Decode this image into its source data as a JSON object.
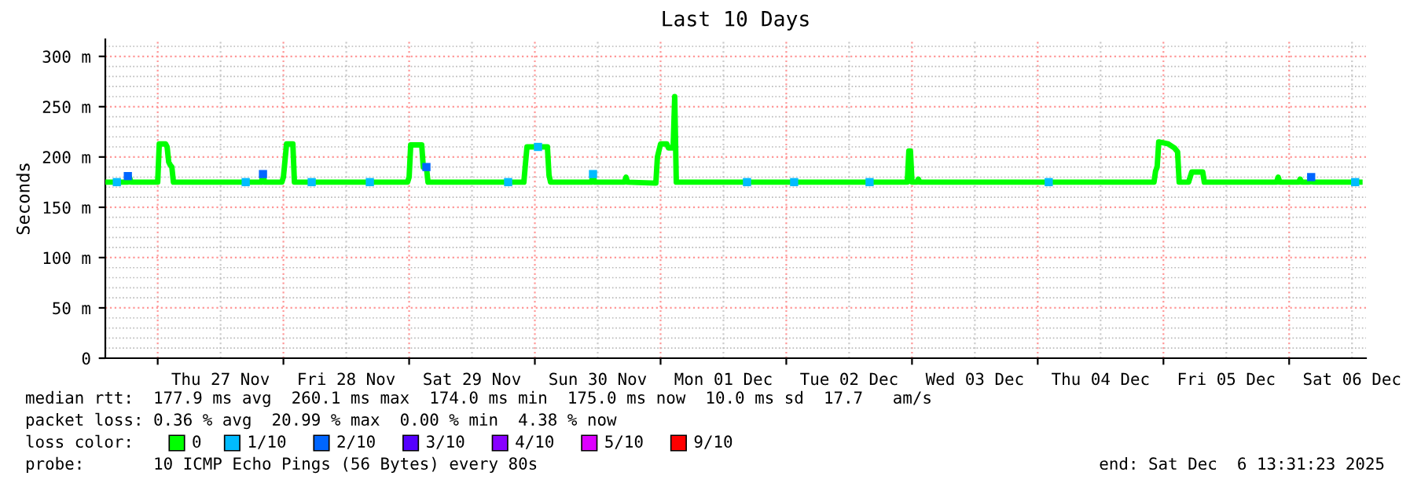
{
  "chart_data": {
    "type": "line",
    "title": "Last 10 Days",
    "ylabel": "Seconds",
    "legend_title": "loss color:",
    "xlim": [
      "2025-11-26T14:00",
      "2025-12-06T14:40"
    ],
    "ylim": [
      0,
      317
    ],
    "xticks": [
      {
        "value": "2025-11-27T00:00",
        "label": null
      },
      {
        "value": "2025-11-27T12:00",
        "label": "Thu 27 Nov"
      },
      {
        "value": "2025-11-28T00:00",
        "label": null
      },
      {
        "value": "2025-11-28T12:00",
        "label": "Fri 28 Nov"
      },
      {
        "value": "2025-11-29T00:00",
        "label": null
      },
      {
        "value": "2025-11-29T12:00",
        "label": "Sat 29 Nov"
      },
      {
        "value": "2025-11-30T00:00",
        "label": null
      },
      {
        "value": "2025-11-30T12:00",
        "label": "Sun 30 Nov"
      },
      {
        "value": "2025-12-01T00:00",
        "label": null
      },
      {
        "value": "2025-12-01T12:00",
        "label": "Mon 01 Dec"
      },
      {
        "value": "2025-12-02T00:00",
        "label": null
      },
      {
        "value": "2025-12-02T12:00",
        "label": "Tue 02 Dec"
      },
      {
        "value": "2025-12-03T00:00",
        "label": null
      },
      {
        "value": "2025-12-03T12:00",
        "label": "Wed 03 Dec"
      },
      {
        "value": "2025-12-04T00:00",
        "label": null
      },
      {
        "value": "2025-12-04T12:00",
        "label": "Thu 04 Dec"
      },
      {
        "value": "2025-12-05T00:00",
        "label": null
      },
      {
        "value": "2025-12-05T12:00",
        "label": "Fri 05 Dec"
      },
      {
        "value": "2025-12-06T00:00",
        "label": null
      },
      {
        "value": "2025-12-06T12:00",
        "label": "Sat 06 Dec"
      }
    ],
    "yticks": [
      {
        "value": 0,
        "label": "0"
      },
      {
        "value": 50,
        "label": "50 m"
      },
      {
        "value": 100,
        "label": "100 m"
      },
      {
        "value": 150,
        "label": "150 m"
      },
      {
        "value": 200,
        "label": "200 m"
      },
      {
        "value": 250,
        "label": "250 m"
      },
      {
        "value": 300,
        "label": "300 m"
      }
    ],
    "grid": true,
    "legend": "bottom",
    "series": [
      {
        "name": "0",
        "color": "#00ff00",
        "x": [
          "2025-11-26T14:06",
          "2025-11-26T18:18",
          "2025-11-26T18:36",
          "2025-11-26T18:54",
          "2025-11-27T00:00",
          "2025-11-27T00:18",
          "2025-11-27T01:30",
          "2025-11-27T01:48",
          "2025-11-27T02:06",
          "2025-11-27T02:24",
          "2025-11-27T02:42",
          "2025-11-27T03:00",
          "2025-11-27T19:48",
          "2025-11-27T20:06",
          "2025-11-27T20:24",
          "2025-11-27T23:42",
          "2025-11-28T00:00",
          "2025-11-28T00:36",
          "2025-11-28T01:48",
          "2025-11-28T02:06",
          "2025-11-28T23:42",
          "2025-11-29T00:00",
          "2025-11-29T00:18",
          "2025-11-29T02:24",
          "2025-11-29T02:42",
          "2025-11-29T03:18",
          "2025-11-29T03:36",
          "2025-11-29T21:54",
          "2025-11-29T22:12",
          "2025-11-29T22:30",
          "2025-11-30T02:24",
          "2025-11-30T02:42",
          "2025-11-30T03:00",
          "2025-11-30T10:48",
          "2025-11-30T11:06",
          "2025-11-30T11:24",
          "2025-11-30T17:06",
          "2025-11-30T17:24",
          "2025-11-30T17:42",
          "2025-11-30T23:06",
          "2025-11-30T23:24",
          "2025-12-01T00:00",
          "2025-12-01T01:12",
          "2025-12-01T01:30",
          "2025-12-01T02:24",
          "2025-12-01T02:42",
          "2025-12-01T03:00",
          "2025-12-02T23:06",
          "2025-12-02T23:24",
          "2025-12-02T23:42",
          "2025-12-03T00:00",
          "2025-12-03T00:54",
          "2025-12-03T01:12",
          "2025-12-03T01:30",
          "2025-12-04T22:12",
          "2025-12-04T22:30",
          "2025-12-04T22:48",
          "2025-12-04T23:06",
          "2025-12-05T00:54",
          "2025-12-05T02:06",
          "2025-12-05T02:42",
          "2025-12-05T03:00",
          "2025-12-05T04:48",
          "2025-12-05T05:06",
          "2025-12-05T05:24",
          "2025-12-05T07:30",
          "2025-12-05T07:48",
          "2025-12-05T21:36",
          "2025-12-05T21:54",
          "2025-12-05T22:12",
          "2025-12-06T01:48",
          "2025-12-06T02:06",
          "2025-12-06T02:24",
          "2025-12-06T03:54",
          "2025-12-06T04:12",
          "2025-12-06T04:30",
          "2025-12-06T13:30"
        ],
        "values": [
          175,
          175,
          180,
          175,
          175,
          213,
          213,
          210,
          195,
          192,
          190,
          175,
          175,
          183,
          175,
          175,
          180,
          213,
          213,
          175,
          175,
          180,
          212,
          212,
          190,
          190,
          175,
          175,
          193,
          210,
          210,
          182,
          175,
          175,
          183,
          175,
          175,
          180,
          175,
          174,
          200,
          213,
          213,
          209,
          209,
          260,
          175,
          175,
          206,
          206,
          175,
          175,
          178,
          175,
          175,
          186,
          190,
          215,
          213,
          209,
          205,
          175,
          175,
          180,
          185,
          185,
          175,
          175,
          180,
          175,
          175,
          178,
          175,
          175,
          180,
          175,
          175
        ]
      },
      {
        "name": "1/10",
        "type": "scatter",
        "color": "#00bbff",
        "x": [
          "2025-11-26T16:12",
          "2025-11-27T16:48",
          "2025-11-28T05:24",
          "2025-11-28T16:30",
          "2025-11-29T18:54",
          "2025-11-30T00:36",
          "2025-11-30T11:06",
          "2025-12-01T16:30",
          "2025-12-02T01:30",
          "2025-12-02T15:54",
          "2025-12-04T02:06",
          "2025-12-06T12:36"
        ],
        "values": [
          175,
          175,
          175,
          175,
          175,
          210,
          183,
          175,
          175,
          175,
          175,
          175
        ]
      },
      {
        "name": "2/10",
        "type": "scatter",
        "color": "#0066ff",
        "x": [
          "2025-11-26T18:18",
          "2025-11-27T20:06",
          "2025-11-29T03:18",
          "2025-12-06T04:12"
        ],
        "values": [
          181,
          183,
          190,
          180
        ]
      },
      {
        "name": "3/10",
        "type": "scatter",
        "color": "#5500ff"
      },
      {
        "name": "4/10",
        "type": "scatter",
        "color": "#8800ff"
      },
      {
        "name": "5/10",
        "type": "scatter",
        "color": "#dd00ff"
      },
      {
        "name": "9/10",
        "type": "scatter",
        "color": "#ff0000"
      }
    ],
    "annotations": [
      "median rtt:  177.9 ms avg  260.1 ms max  174.0 ms min  175.0 ms now  10.0 ms sd  17.7   am/s",
      "packet loss: 0.36 % avg  20.99 % max  0.00 % min  4.38 % now",
      "probe:       10 ICMP Echo Pings (56 Bytes) every 80s",
      "end: Sat Dec  6 13:31:23 2025"
    ]
  }
}
